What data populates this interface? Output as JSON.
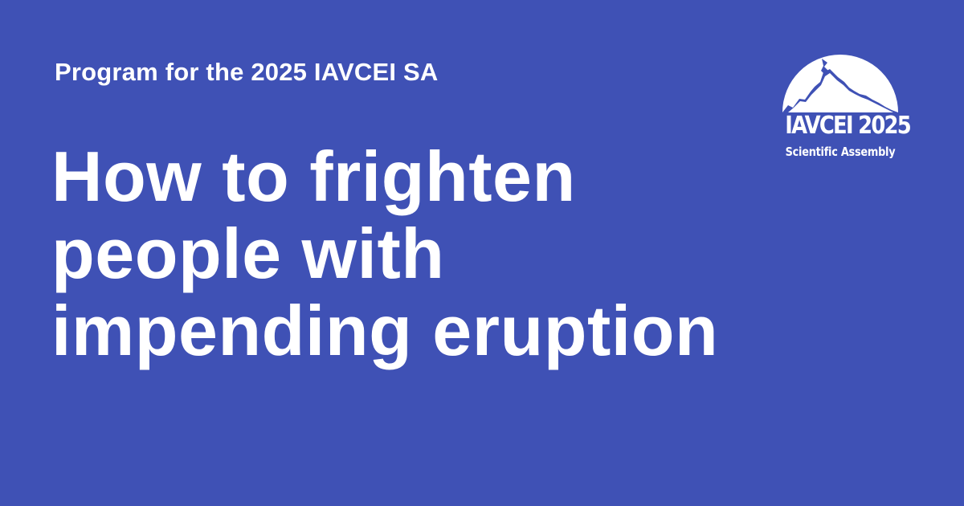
{
  "header": {
    "eyebrow": "Program for the 2025 IAVCEI SA"
  },
  "title": {
    "lines": [
      "How to frighten",
      "people with",
      "impending eruption"
    ]
  },
  "logo": {
    "title": "IAVCEI 2025",
    "subtitle": "Scientific Assembly",
    "icon": "volcano-mountain-icon"
  },
  "colors": {
    "background": "#3f51b5",
    "foreground": "#ffffff"
  }
}
